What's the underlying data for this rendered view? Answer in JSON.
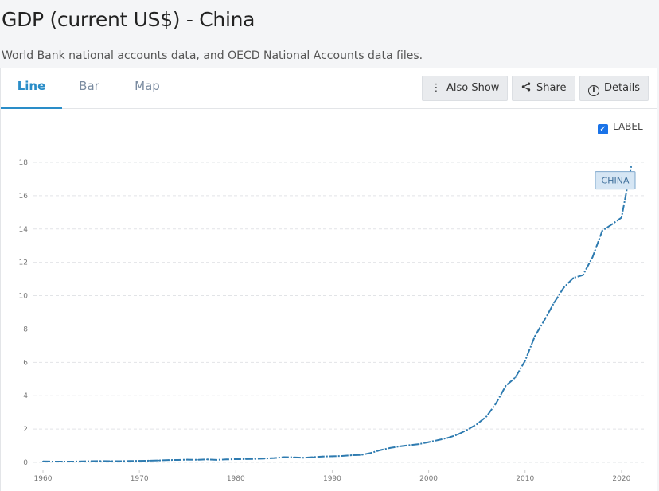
{
  "header": {
    "title": "GDP (current US$) - China",
    "source": "World Bank national accounts data, and OECD National Accounts data files."
  },
  "tabs": [
    {
      "label": "Line",
      "active": true
    },
    {
      "label": "Bar",
      "active": false
    },
    {
      "label": "Map",
      "active": false
    }
  ],
  "toolbar": {
    "also_show_label": "Also Show",
    "share_label": "Share",
    "details_label": "Details"
  },
  "label_toggle": {
    "label": "LABEL",
    "checked": true
  },
  "chart_data": {
    "type": "line",
    "title": "",
    "xlabel": "",
    "ylabel": "",
    "ylim": [
      0,
      18
    ],
    "xlim": [
      1960,
      2021
    ],
    "grid": true,
    "line_color": "#2e7bb0",
    "y_ticks": [
      "0",
      "2",
      "4",
      "6",
      "8",
      "10",
      "12",
      "14",
      "16",
      "18"
    ],
    "x_ticks": [
      "1960",
      "1970",
      "1980",
      "1990",
      "2000",
      "2010",
      "2020"
    ],
    "series": [
      {
        "name": "CHINA",
        "x": [
          1960,
          1961,
          1962,
          1963,
          1964,
          1965,
          1966,
          1967,
          1968,
          1969,
          1970,
          1971,
          1972,
          1973,
          1974,
          1975,
          1976,
          1977,
          1978,
          1979,
          1980,
          1981,
          1982,
          1983,
          1984,
          1985,
          1986,
          1987,
          1988,
          1989,
          1990,
          1991,
          1992,
          1993,
          1994,
          1995,
          1996,
          1997,
          1998,
          1999,
          2000,
          2001,
          2002,
          2003,
          2004,
          2005,
          2006,
          2007,
          2008,
          2009,
          2010,
          2011,
          2012,
          2013,
          2014,
          2015,
          2016,
          2017,
          2018,
          2019,
          2020,
          2021
        ],
        "y": [
          0.06,
          0.05,
          0.047,
          0.05,
          0.059,
          0.07,
          0.076,
          0.072,
          0.07,
          0.079,
          0.093,
          0.1,
          0.114,
          0.139,
          0.144,
          0.163,
          0.154,
          0.175,
          0.149,
          0.178,
          0.191,
          0.196,
          0.205,
          0.231,
          0.26,
          0.31,
          0.3,
          0.273,
          0.312,
          0.348,
          0.361,
          0.383,
          0.427,
          0.444,
          0.564,
          0.734,
          0.863,
          0.962,
          1.029,
          1.094,
          1.211,
          1.339,
          1.471,
          1.66,
          1.955,
          2.286,
          2.752,
          3.55,
          4.594,
          5.101,
          6.087,
          7.552,
          8.532,
          9.57,
          10.476,
          11.062,
          11.233,
          12.31,
          13.895,
          14.28,
          14.688,
          17.734
        ]
      }
    ]
  }
}
